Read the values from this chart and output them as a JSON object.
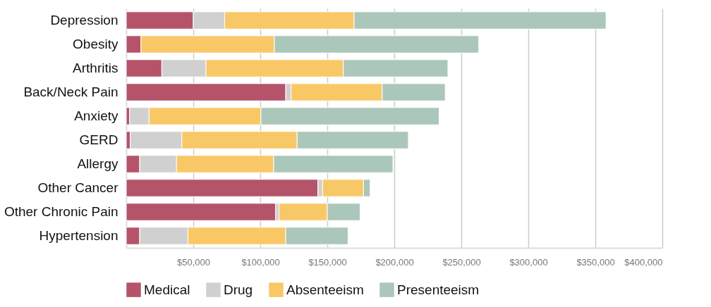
{
  "chart_data": {
    "type": "bar",
    "orientation": "horizontal",
    "stacked": true,
    "categories": [
      "Depression",
      "Obesity",
      "Arthritis",
      "Back/Neck Pain",
      "Anxiety",
      "GERD",
      "Allergy",
      "Other Cancer",
      "Other Chronic Pain",
      "Hypertension"
    ],
    "series": [
      {
        "name": "Medical",
        "color": "#b5536b",
        "values": [
          50000,
          11000,
          26500,
          119000,
          2500,
          3000,
          10000,
          143000,
          111500,
          10000
        ]
      },
      {
        "name": "Drug",
        "color": "#d0d0d0",
        "values": [
          23500,
          null,
          33000,
          4000,
          14500,
          38500,
          27500,
          3500,
          2500,
          36000
        ]
      },
      {
        "name": "Absenteeism",
        "color": "#f9c866",
        "values": [
          96500,
          99500,
          102500,
          68000,
          83500,
          86000,
          72500,
          30500,
          36000,
          73000
        ]
      },
      {
        "name": "Presenteeism",
        "color": "#abc7ba",
        "values": [
          188000,
          152500,
          78000,
          47000,
          133000,
          83000,
          89000,
          5000,
          24500,
          46500
        ]
      }
    ],
    "xlim": [
      0,
      400000
    ],
    "xticks": [
      {
        "value": 50000,
        "label": "$50,000"
      },
      {
        "value": 100000,
        "label": "$100,000"
      },
      {
        "value": 150000,
        "label": "$150,000"
      },
      {
        "value": 200000,
        "label": "$200,000"
      },
      {
        "value": 250000,
        "label": "$250,000"
      },
      {
        "value": 300000,
        "label": "$300,000"
      },
      {
        "value": 350000,
        "label": "$350,000"
      },
      {
        "value": 400000,
        "label": "$400,000"
      }
    ],
    "grid": "x",
    "legend": "bottom"
  }
}
